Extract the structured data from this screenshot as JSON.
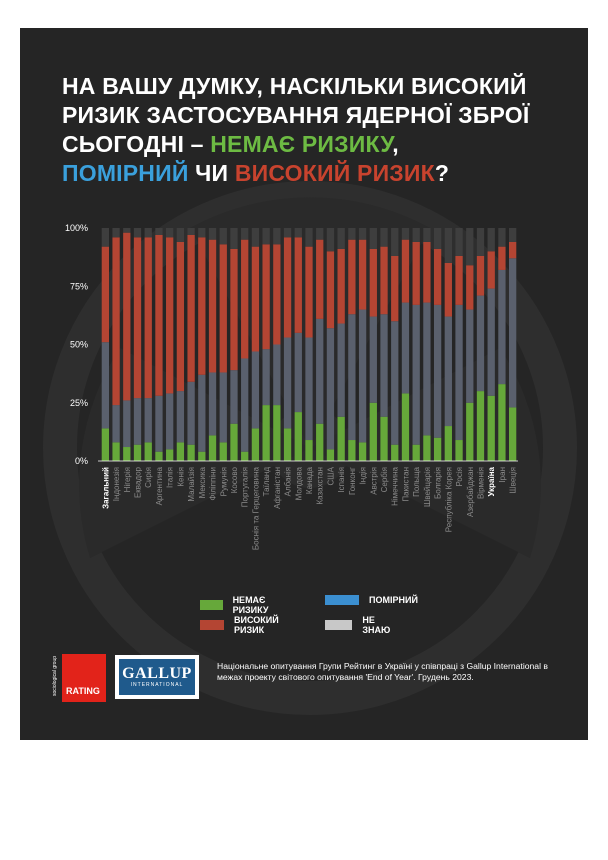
{
  "title": {
    "part1": "НА ВАШУ ДУМКУ, НАСКІЛЬКИ ВИСОКИЙ РИЗИК ЗАСТОСУВАННЯ ЯДЕРНОЇ ЗБРОЇ СЬОГОДНІ – ",
    "no_risk": "НЕМАЄ РИЗИКУ",
    "comma": ",",
    "moderate": "ПОМІРНИЙ",
    "or": " ЧИ ",
    "high": "ВИСОКИЙ РИЗИК",
    "qmark": "?"
  },
  "colors": {
    "no_risk": "#66a83a",
    "moderate": "#5a606d",
    "high": "#b44533",
    "dont_know": "#3e3e3e",
    "title_green": "#6dbb43",
    "title_blue": "#3aa0dc",
    "title_red": "#c8432e",
    "legend_blue": "#3b8fd1",
    "legend_grey": "#c8c8c8"
  },
  "legend": {
    "no_risk": "НЕМАЄ РИЗИКУ",
    "moderate": "ПОМІРНИЙ",
    "high": "ВИСОКИЙ РИЗИК",
    "dont_know": "НЕ ЗНАЮ"
  },
  "footer": {
    "rating_label": "RATING",
    "rating_sub": "sociological group",
    "gallup_word": "GALLUP",
    "gallup_intl": "INTERNATIONAL",
    "note": "Національне опитування Групи Рейтинг в Україні у співпраці з Gallup International в межах проекту світового опитування 'End of Year'. Грудень 2023."
  },
  "chart_data": {
    "type": "bar",
    "stacked": true,
    "ylim": [
      0,
      100
    ],
    "yticks": [
      "0%",
      "25%",
      "50%",
      "75%",
      "100%"
    ],
    "bold_categories": [
      "Загальний",
      "Україна"
    ],
    "categories": [
      "Загальний",
      "Індонезія",
      "Нігерія",
      "Еквадор",
      "Сирія",
      "Аргентина",
      "Італія",
      "Кенія",
      "Малайзія",
      "Мексика",
      "Філіппіни",
      "Румунія",
      "Косово",
      "Португалія",
      "Боснія та Герцеговина",
      "Таїланд",
      "Афганістан",
      "Албанія",
      "Молдова",
      "Канада",
      "Казахстан",
      "США",
      "Іспанія",
      "Гонконг",
      "Індія",
      "Австрія",
      "Сербія",
      "Німеччина",
      "Пакистан",
      "Польща",
      "Швейцарія",
      "Болгарія",
      "Республіка Корея",
      "Росія",
      "Азербайджан",
      "Вірменія",
      "Україна",
      "Іран",
      "Швеція"
    ],
    "series": [
      {
        "name": "НЕМАЄ РИЗИКУ",
        "values": [
          14,
          8,
          6,
          7,
          8,
          4,
          5,
          8,
          7,
          4,
          11,
          8,
          16,
          4,
          14,
          24,
          24,
          14,
          21,
          9,
          16,
          5,
          19,
          9,
          8,
          25,
          19,
          7,
          29,
          7,
          11,
          10,
          15,
          9,
          25,
          30,
          28,
          33,
          23
        ]
      },
      {
        "name": "ПОМІРНИЙ",
        "values": [
          37,
          16,
          20,
          20,
          19,
          24,
          24,
          22,
          27,
          33,
          27,
          30,
          23,
          40,
          33,
          24,
          26,
          39,
          34,
          44,
          45,
          52,
          40,
          54,
          57,
          37,
          44,
          53,
          39,
          60,
          57,
          57,
          47,
          58,
          40,
          41,
          46,
          49,
          64
        ]
      },
      {
        "name": "ВИСОКИЙ РИЗИК",
        "values": [
          41,
          72,
          72,
          69,
          69,
          69,
          67,
          64,
          63,
          59,
          57,
          55,
          52,
          51,
          45,
          45,
          43,
          43,
          41,
          39,
          34,
          33,
          32,
          32,
          30,
          29,
          29,
          28,
          27,
          27,
          26,
          24,
          23,
          21,
          19,
          17,
          16,
          10,
          7
        ]
      },
      {
        "name": "НЕ ЗНАЮ",
        "values": [
          8,
          4,
          2,
          4,
          4,
          3,
          4,
          6,
          3,
          4,
          5,
          7,
          9,
          5,
          8,
          7,
          7,
          4,
          4,
          8,
          5,
          10,
          9,
          5,
          5,
          9,
          8,
          12,
          5,
          6,
          6,
          9,
          15,
          12,
          16,
          12,
          10,
          8,
          6
        ]
      }
    ]
  }
}
